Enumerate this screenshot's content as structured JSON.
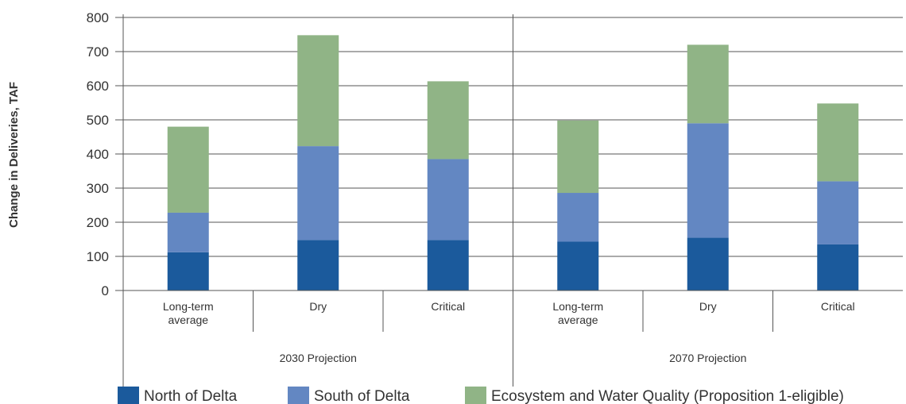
{
  "chart_data": {
    "type": "bar",
    "stacked": true,
    "ylabel": "Change in Deliveries, TAF",
    "ylim": [
      0,
      800
    ],
    "yticks": [
      0,
      100,
      200,
      300,
      400,
      500,
      600,
      700,
      800
    ],
    "grid": true,
    "legend_position": "bottom",
    "groups": [
      {
        "label": "2030 Projection",
        "categories": [
          [
            "Long-term",
            "average"
          ],
          [
            "Dry"
          ],
          [
            "Critical"
          ]
        ]
      },
      {
        "label": "2070 Projection",
        "categories": [
          [
            "Long-term",
            "average"
          ],
          [
            "Dry"
          ],
          [
            "Critical"
          ]
        ]
      }
    ],
    "series": [
      {
        "name": "North of Delta",
        "color": "#1b5a9c",
        "values": [
          112,
          148,
          148,
          143,
          155,
          135
        ]
      },
      {
        "name": "South of Delta",
        "color": "#6387c2",
        "values": [
          116,
          275,
          237,
          143,
          335,
          185
        ]
      },
      {
        "name": "Ecosystem and Water Quality (Proposition 1-eligible)",
        "color": "#90b486",
        "values": [
          252,
          325,
          228,
          212,
          230,
          228
        ]
      }
    ]
  }
}
